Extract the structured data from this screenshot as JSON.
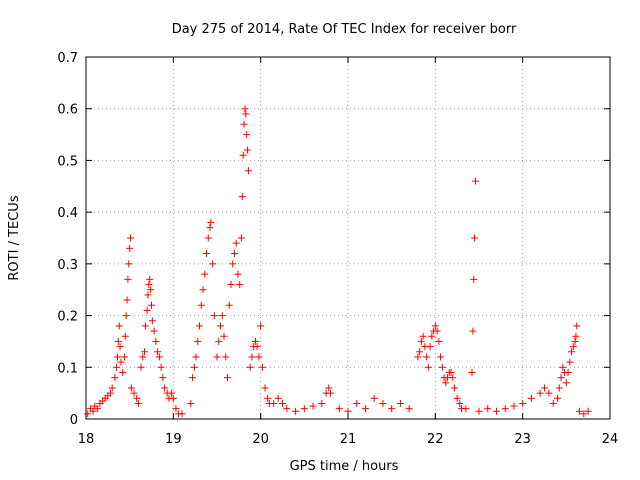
{
  "chart_data": {
    "type": "scatter",
    "title": "Day 275 of 2014, Rate Of TEC Index for receiver borr",
    "xlabel": "GPS time / hours",
    "ylabel": "ROTI / TECUs",
    "xlim": [
      18,
      24
    ],
    "ylim": [
      0,
      0.7
    ],
    "x_ticks": [
      18,
      19,
      20,
      21,
      22,
      23,
      24
    ],
    "y_ticks": [
      0,
      0.1,
      0.2,
      0.3,
      0.4,
      0.5,
      0.6,
      0.7
    ],
    "x_tick_labels": [
      "18",
      "19",
      "20",
      "21",
      "22",
      "23",
      "24"
    ],
    "y_tick_labels": [
      "0",
      "0.1",
      "0.2",
      "0.3",
      "0.4",
      "0.5",
      "0.6",
      "0.7"
    ],
    "grid": true,
    "marker": "+",
    "color": "#ff0000",
    "series": [
      {
        "name": "ROTI",
        "points": [
          [
            18.02,
            0.01
          ],
          [
            18.05,
            0.02
          ],
          [
            18.08,
            0.015
          ],
          [
            18.1,
            0.025
          ],
          [
            18.13,
            0.02
          ],
          [
            18.16,
            0.03
          ],
          [
            18.19,
            0.035
          ],
          [
            18.22,
            0.04
          ],
          [
            18.25,
            0.045
          ],
          [
            18.28,
            0.05
          ],
          [
            18.3,
            0.06
          ],
          [
            18.33,
            0.08
          ],
          [
            18.35,
            0.1
          ],
          [
            18.36,
            0.12
          ],
          [
            18.37,
            0.15
          ],
          [
            18.38,
            0.18
          ],
          [
            18.39,
            0.14
          ],
          [
            18.4,
            0.11
          ],
          [
            18.42,
            0.09
          ],
          [
            18.44,
            0.12
          ],
          [
            18.45,
            0.16
          ],
          [
            18.46,
            0.2
          ],
          [
            18.47,
            0.23
          ],
          [
            18.48,
            0.27
          ],
          [
            18.49,
            0.3
          ],
          [
            18.5,
            0.33
          ],
          [
            18.51,
            0.35
          ],
          [
            18.52,
            0.06
          ],
          [
            18.55,
            0.05
          ],
          [
            18.58,
            0.04
          ],
          [
            18.6,
            0.03
          ],
          [
            18.63,
            0.1
          ],
          [
            18.65,
            0.12
          ],
          [
            18.67,
            0.13
          ],
          [
            18.68,
            0.18
          ],
          [
            18.7,
            0.21
          ],
          [
            18.71,
            0.24
          ],
          [
            18.72,
            0.26
          ],
          [
            18.73,
            0.27
          ],
          [
            18.74,
            0.25
          ],
          [
            18.75,
            0.22
          ],
          [
            18.76,
            0.19
          ],
          [
            18.78,
            0.17
          ],
          [
            18.8,
            0.15
          ],
          [
            18.82,
            0.13
          ],
          [
            18.84,
            0.12
          ],
          [
            18.86,
            0.1
          ],
          [
            18.88,
            0.08
          ],
          [
            18.9,
            0.06
          ],
          [
            18.93,
            0.05
          ],
          [
            18.95,
            0.04
          ],
          [
            18.98,
            0.05
          ],
          [
            19.0,
            0.04
          ],
          [
            19.03,
            0.02
          ],
          [
            19.06,
            0.01
          ],
          [
            19.1,
            0.01
          ],
          [
            19.2,
            0.03
          ],
          [
            19.22,
            0.08
          ],
          [
            19.24,
            0.1
          ],
          [
            19.26,
            0.12
          ],
          [
            19.28,
            0.15
          ],
          [
            19.3,
            0.18
          ],
          [
            19.32,
            0.22
          ],
          [
            19.34,
            0.25
          ],
          [
            19.36,
            0.28
          ],
          [
            19.38,
            0.32
          ],
          [
            19.4,
            0.35
          ],
          [
            19.42,
            0.37
          ],
          [
            19.43,
            0.38
          ],
          [
            19.45,
            0.3
          ],
          [
            19.47,
            0.2
          ],
          [
            19.5,
            0.12
          ],
          [
            19.52,
            0.15
          ],
          [
            19.54,
            0.18
          ],
          [
            19.56,
            0.2
          ],
          [
            19.58,
            0.16
          ],
          [
            19.6,
            0.12
          ],
          [
            19.62,
            0.08
          ],
          [
            19.64,
            0.22
          ],
          [
            19.66,
            0.26
          ],
          [
            19.68,
            0.3
          ],
          [
            19.7,
            0.32
          ],
          [
            19.72,
            0.34
          ],
          [
            19.74,
            0.28
          ],
          [
            19.76,
            0.26
          ],
          [
            19.78,
            0.35
          ],
          [
            19.79,
            0.43
          ],
          [
            19.8,
            0.51
          ],
          [
            19.81,
            0.57
          ],
          [
            19.82,
            0.6
          ],
          [
            19.83,
            0.59
          ],
          [
            19.84,
            0.55
          ],
          [
            19.85,
            0.52
          ],
          [
            19.86,
            0.48
          ],
          [
            19.88,
            0.1
          ],
          [
            19.9,
            0.12
          ],
          [
            19.92,
            0.14
          ],
          [
            19.94,
            0.15
          ],
          [
            19.96,
            0.14
          ],
          [
            19.98,
            0.12
          ],
          [
            20.0,
            0.18
          ],
          [
            20.02,
            0.1
          ],
          [
            20.05,
            0.06
          ],
          [
            20.08,
            0.04
          ],
          [
            20.1,
            0.03
          ],
          [
            20.15,
            0.03
          ],
          [
            20.2,
            0.04
          ],
          [
            20.25,
            0.03
          ],
          [
            20.3,
            0.02
          ],
          [
            20.4,
            0.015
          ],
          [
            20.5,
            0.02
          ],
          [
            20.6,
            0.025
          ],
          [
            20.7,
            0.03
          ],
          [
            20.75,
            0.05
          ],
          [
            20.78,
            0.06
          ],
          [
            20.8,
            0.05
          ],
          [
            20.9,
            0.02
          ],
          [
            21.0,
            0.015
          ],
          [
            21.1,
            0.03
          ],
          [
            21.2,
            0.02
          ],
          [
            21.3,
            0.04
          ],
          [
            21.4,
            0.03
          ],
          [
            21.5,
            0.02
          ],
          [
            21.6,
            0.03
          ],
          [
            21.7,
            0.02
          ],
          [
            21.8,
            0.12
          ],
          [
            21.82,
            0.13
          ],
          [
            21.84,
            0.15
          ],
          [
            21.86,
            0.16
          ],
          [
            21.88,
            0.14
          ],
          [
            21.9,
            0.12
          ],
          [
            21.92,
            0.1
          ],
          [
            21.94,
            0.14
          ],
          [
            21.96,
            0.16
          ],
          [
            21.98,
            0.17
          ],
          [
            22.0,
            0.18
          ],
          [
            22.02,
            0.17
          ],
          [
            22.04,
            0.15
          ],
          [
            22.06,
            0.12
          ],
          [
            22.08,
            0.1
          ],
          [
            22.1,
            0.08
          ],
          [
            22.12,
            0.07
          ],
          [
            22.14,
            0.08
          ],
          [
            22.16,
            0.09
          ],
          [
            22.18,
            0.09
          ],
          [
            22.2,
            0.08
          ],
          [
            22.22,
            0.06
          ],
          [
            22.25,
            0.04
          ],
          [
            22.28,
            0.03
          ],
          [
            22.3,
            0.02
          ],
          [
            22.35,
            0.02
          ],
          [
            22.42,
            0.09
          ],
          [
            22.43,
            0.17
          ],
          [
            22.44,
            0.27
          ],
          [
            22.45,
            0.35
          ],
          [
            22.46,
            0.46
          ],
          [
            22.5,
            0.015
          ],
          [
            22.6,
            0.02
          ],
          [
            22.7,
            0.015
          ],
          [
            22.8,
            0.02
          ],
          [
            22.9,
            0.025
          ],
          [
            23.0,
            0.03
          ],
          [
            23.1,
            0.04
          ],
          [
            23.2,
            0.05
          ],
          [
            23.25,
            0.06
          ],
          [
            23.3,
            0.05
          ],
          [
            23.35,
            0.03
          ],
          [
            23.4,
            0.04
          ],
          [
            23.42,
            0.06
          ],
          [
            23.44,
            0.08
          ],
          [
            23.46,
            0.1
          ],
          [
            23.48,
            0.09
          ],
          [
            23.5,
            0.07
          ],
          [
            23.52,
            0.09
          ],
          [
            23.54,
            0.11
          ],
          [
            23.56,
            0.13
          ],
          [
            23.58,
            0.14
          ],
          [
            23.6,
            0.15
          ],
          [
            23.61,
            0.16
          ],
          [
            23.62,
            0.18
          ],
          [
            23.65,
            0.015
          ],
          [
            23.7,
            0.01
          ],
          [
            23.75,
            0.015
          ]
        ]
      }
    ]
  }
}
